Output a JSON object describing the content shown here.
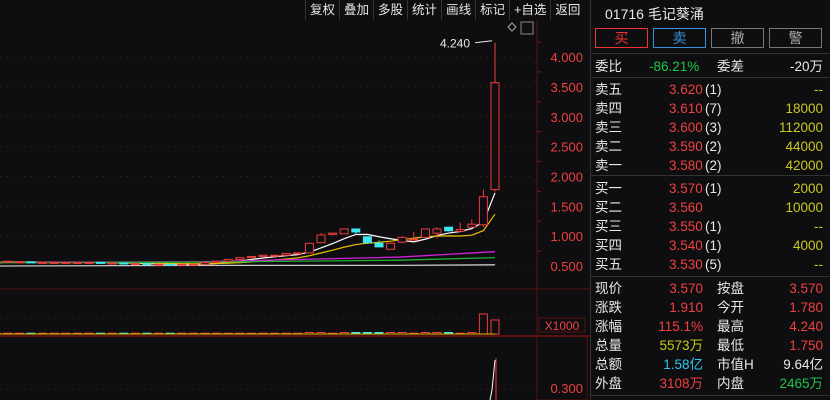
{
  "toolbar": [
    "复权",
    "叠加",
    "多股",
    "统计",
    "画线",
    "标记",
    "+自选",
    "返回"
  ],
  "stock": {
    "code": "01716",
    "name": "毛记葵涌"
  },
  "buttons": {
    "buy": "买",
    "sell": "卖",
    "cancel": "撤",
    "alert": "警"
  },
  "ratio": {
    "label": "委比",
    "value": "-86.21%",
    "diff_label": "委差",
    "diff_value": "-20万"
  },
  "asks": [
    {
      "label": "卖五",
      "price": "3.620",
      "count": "(1)",
      "vol": "--"
    },
    {
      "label": "卖四",
      "price": "3.610",
      "count": "(7)",
      "vol": "18000"
    },
    {
      "label": "卖三",
      "price": "3.600",
      "count": "(3)",
      "vol": "112000"
    },
    {
      "label": "卖二",
      "price": "3.590",
      "count": "(2)",
      "vol": "44000"
    },
    {
      "label": "卖一",
      "price": "3.580",
      "count": "(2)",
      "vol": "42000"
    }
  ],
  "bids": [
    {
      "label": "买一",
      "price": "3.570",
      "count": "(1)",
      "vol": "2000"
    },
    {
      "label": "买二",
      "price": "3.560",
      "count": "",
      "vol": "10000"
    },
    {
      "label": "买三",
      "price": "3.550",
      "count": "(1)",
      "vol": "--"
    },
    {
      "label": "买四",
      "price": "3.540",
      "count": "(1)",
      "vol": "4000"
    },
    {
      "label": "买五",
      "price": "3.530",
      "count": "(5)",
      "vol": "--"
    }
  ],
  "stats": [
    {
      "l1": "现价",
      "v1": "3.570",
      "c1": "red",
      "l2": "按盘",
      "v2": "3.570",
      "c2": "red"
    },
    {
      "l1": "涨跌",
      "v1": "1.910",
      "c1": "red",
      "l2": "今开",
      "v2": "1.780",
      "c2": "red"
    },
    {
      "l1": "涨幅",
      "v1": "115.1%",
      "c1": "red",
      "l2": "最高",
      "v2": "4.240",
      "c2": "red"
    },
    {
      "l1": "总量",
      "v1": "5573万",
      "c1": "yel",
      "l2": "最低",
      "v2": "1.750",
      "c2": "red"
    },
    {
      "l1": "总额",
      "v1": "1.58亿",
      "c1": "cyan",
      "l2": "市值H",
      "v2": "9.64亿",
      "c2": "wht"
    },
    {
      "l1": "外盘",
      "v1": "3108万",
      "c1": "red",
      "l2": "内盘",
      "v2": "2465万",
      "c2": "green"
    }
  ],
  "chart_data": {
    "type": "candlestick",
    "yticks": [
      "4.000",
      "3.500",
      "3.000",
      "2.500",
      "2.000",
      "1.500",
      "1.000",
      "0.500"
    ],
    "ytick_values": [
      4.0,
      3.5,
      3.0,
      2.5,
      2.0,
      1.5,
      1.0,
      0.5
    ],
    "high_label": "4.240",
    "volume_unit": "X1000",
    "lower_tick": "0.300",
    "colors": {
      "up": "#f03c3c",
      "down": "#3ee8f0",
      "ma5": "#ffffff",
      "ma10": "#e8c000",
      "ma20": "#d020d8",
      "ma30": "#20b030",
      "ma60": "#c8c8c8"
    },
    "candles": [
      [
        0.56,
        0.57,
        0.57,
        0.56
      ],
      [
        0.56,
        0.56,
        0.56,
        0.56
      ],
      [
        0.56,
        0.56,
        0.56,
        0.56
      ],
      [
        0.57,
        0.58,
        0.58,
        0.56
      ],
      [
        0.57,
        0.57,
        0.57,
        0.57
      ],
      [
        0.57,
        0.56,
        0.57,
        0.56
      ],
      [
        0.56,
        0.56,
        0.56,
        0.56
      ],
      [
        0.56,
        0.56,
        0.56,
        0.56
      ],
      [
        0.56,
        0.56,
        0.56,
        0.56
      ],
      [
        0.56,
        0.56,
        0.56,
        0.56
      ],
      [
        0.56,
        0.56,
        0.56,
        0.56
      ],
      [
        0.56,
        0.55,
        0.56,
        0.55
      ],
      [
        0.55,
        0.55,
        0.55,
        0.55
      ],
      [
        0.55,
        0.54,
        0.55,
        0.54
      ],
      [
        0.54,
        0.54,
        0.54,
        0.54
      ],
      [
        0.54,
        0.53,
        0.54,
        0.53
      ],
      [
        0.53,
        0.53,
        0.53,
        0.53
      ],
      [
        0.53,
        0.52,
        0.53,
        0.52
      ],
      [
        0.52,
        0.53,
        0.53,
        0.52
      ],
      [
        0.53,
        0.53,
        0.53,
        0.53
      ],
      [
        0.53,
        0.56,
        0.56,
        0.53
      ],
      [
        0.56,
        0.58,
        0.58,
        0.56
      ],
      [
        0.58,
        0.61,
        0.62,
        0.58
      ],
      [
        0.61,
        0.64,
        0.64,
        0.61
      ],
      [
        0.64,
        0.66,
        0.66,
        0.63
      ],
      [
        0.66,
        0.68,
        0.68,
        0.66
      ],
      [
        0.68,
        0.68,
        0.69,
        0.67
      ],
      [
        0.68,
        0.71,
        0.71,
        0.68
      ],
      [
        0.71,
        0.72,
        0.72,
        0.7
      ],
      [
        0.72,
        0.88,
        0.88,
        0.72
      ],
      [
        0.89,
        1.02,
        1.05,
        0.89
      ],
      [
        1.03,
        1.05,
        1.06,
        1.01
      ],
      [
        1.04,
        1.12,
        1.12,
        1.04
      ],
      [
        1.12,
        1.07,
        1.12,
        1.02
      ],
      [
        0.99,
        0.89,
        0.99,
        0.87
      ],
      [
        0.88,
        0.82,
        0.93,
        0.82
      ],
      [
        0.78,
        0.88,
        0.88,
        0.78
      ],
      [
        0.9,
        0.98,
        1.0,
        0.88
      ],
      [
        0.95,
        0.95,
        1.07,
        0.94
      ],
      [
        0.98,
        1.12,
        1.12,
        0.98
      ],
      [
        1.05,
        1.12,
        1.15,
        0.96
      ],
      [
        1.15,
        1.09,
        1.15,
        1.08
      ],
      [
        1.08,
        1.11,
        1.23,
        1.08
      ],
      [
        1.15,
        1.2,
        1.28,
        1.14
      ],
      [
        1.19,
        1.66,
        1.78,
        1.15
      ],
      [
        1.78,
        3.57,
        4.24,
        1.75
      ]
    ],
    "ma20_last": 0.74,
    "ma30_last": 0.64,
    "ma60_last": 0.52
  }
}
